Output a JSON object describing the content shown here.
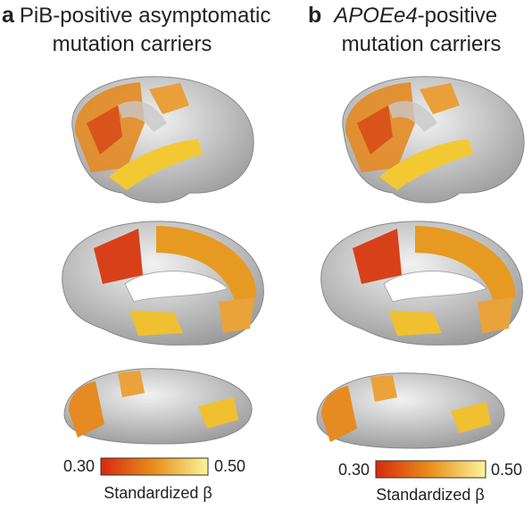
{
  "panels": [
    {
      "letter": "a",
      "title_line1": [
        "PiB-positive asymptomatic"
      ],
      "title_line2": "mutation carriers",
      "colorbar": {
        "min": "0.30",
        "max": "0.50",
        "label": "Standardized β"
      }
    },
    {
      "letter": "b",
      "title_line1": [
        "APOEe4",
        "-positive"
      ],
      "title_line2": "mutation carriers",
      "colorbar": {
        "min": "0.30",
        "max": "0.50",
        "label": "Standardized β"
      }
    }
  ]
}
